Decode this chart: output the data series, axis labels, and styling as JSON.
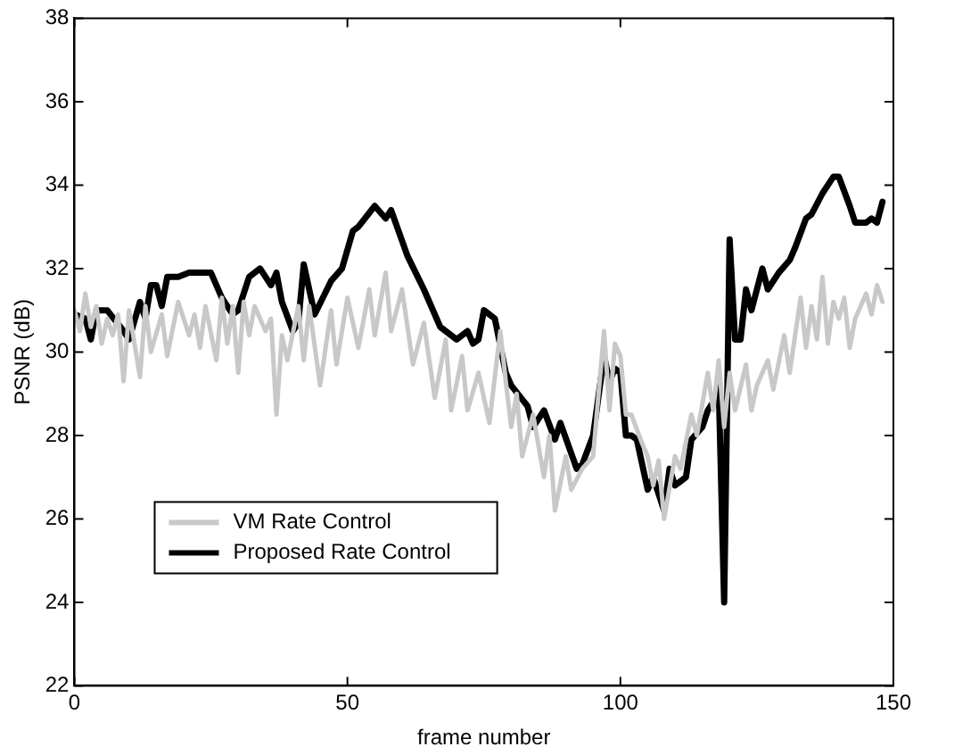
{
  "chart_data": {
    "type": "line",
    "xlabel": "frame number",
    "ylabel": "PSNR (dB)",
    "xlim": [
      0,
      150
    ],
    "xticks": [
      0,
      50,
      100,
      150
    ],
    "ylim": [
      22,
      38
    ],
    "yticks": [
      22,
      24,
      26,
      28,
      30,
      32,
      34,
      36,
      38
    ],
    "grid": false,
    "legend": "bottom left",
    "marker": "none",
    "line_style": "solid",
    "series": [
      {
        "name": "VM Rate Control",
        "color": "#c8c8c8",
        "x": [
          0,
          1,
          2,
          3,
          4,
          5,
          6,
          7,
          8,
          9,
          10,
          12,
          13,
          14,
          16,
          17,
          19,
          21,
          22,
          23,
          24,
          26,
          27,
          28,
          29,
          30,
          31,
          32,
          33,
          35,
          36,
          37,
          38,
          39,
          41,
          42,
          43,
          45,
          47,
          48,
          50,
          52,
          54,
          55,
          57,
          58,
          60,
          62,
          64,
          66,
          68,
          69,
          71,
          72,
          74,
          76,
          78,
          79,
          80,
          81,
          82,
          84,
          86,
          87,
          88,
          90,
          91,
          93,
          95,
          97,
          98,
          99,
          100,
          101,
          102,
          104,
          105,
          106,
          107,
          108,
          110,
          111,
          113,
          114,
          116,
          117,
          118,
          119,
          120,
          121,
          123,
          124,
          125,
          127,
          128,
          130,
          131,
          133,
          134,
          135,
          136,
          137,
          138,
          139,
          140,
          141,
          142,
          143,
          145,
          146,
          147,
          148
        ],
        "values": [
          31,
          30.5,
          31.4,
          30.6,
          31.1,
          30.2,
          30.8,
          30.4,
          30.9,
          29.3,
          31,
          29.4,
          31.1,
          30,
          30.9,
          29.9,
          31.2,
          30.4,
          30.9,
          30.1,
          31.1,
          29.8,
          31.3,
          30.2,
          31.1,
          29.5,
          31.2,
          30.4,
          31.1,
          30.5,
          30.8,
          28.5,
          30.4,
          29.8,
          31.1,
          29.8,
          31.1,
          29.2,
          31,
          29.7,
          31.3,
          30.1,
          31.5,
          30.4,
          31.9,
          30.5,
          31.5,
          29.7,
          30.7,
          28.9,
          30.3,
          28.6,
          29.9,
          28.6,
          29.5,
          28.3,
          30.5,
          29.3,
          28.2,
          29,
          27.5,
          28.5,
          27,
          28,
          26.2,
          27.5,
          26.7,
          27.2,
          27.5,
          30.5,
          28.6,
          30.2,
          29.9,
          28.5,
          28.5,
          27.8,
          27.5,
          26.8,
          27.4,
          26,
          27.5,
          27.2,
          28.5,
          28,
          29.5,
          28.6,
          29.8,
          28.2,
          29.5,
          28.6,
          29.7,
          28.6,
          29.2,
          29.8,
          29.1,
          30.4,
          29.5,
          31.3,
          30.1,
          31.1,
          30.3,
          31.8,
          30.2,
          31.2,
          30.8,
          31.3,
          30.1,
          30.8,
          31.4,
          30.9,
          31.6,
          31.2
        ]
      },
      {
        "name": "Proposed Rate Control",
        "color": "#000000",
        "x": [
          0,
          2,
          3,
          4,
          6,
          9,
          10,
          12,
          13,
          14,
          15,
          16,
          17,
          19,
          21,
          25,
          27,
          29,
          30,
          32,
          34,
          36,
          37,
          38,
          40,
          41,
          42,
          44,
          47,
          49,
          51,
          52,
          55,
          57,
          58,
          61,
          64,
          67,
          70,
          72,
          73,
          74,
          75,
          77,
          79,
          80,
          83,
          84,
          86,
          88,
          89,
          92,
          93,
          95,
          97,
          98,
          99,
          100,
          101,
          102,
          103,
          105,
          106,
          108,
          109,
          110,
          112,
          113,
          115,
          116,
          117,
          118,
          119,
          120,
          121,
          122,
          123,
          124,
          126,
          127,
          129,
          131,
          132,
          134,
          135,
          137,
          139,
          140,
          142,
          143,
          145,
          146,
          147,
          148
        ],
        "values": [
          30.9,
          30.8,
          30.3,
          31,
          31,
          30.5,
          30.3,
          31.2,
          30.8,
          31.6,
          31.6,
          31.1,
          31.8,
          31.8,
          31.9,
          31.9,
          31.3,
          30.9,
          31,
          31.8,
          32,
          31.6,
          31.9,
          31.2,
          30.5,
          30.7,
          32.1,
          30.9,
          31.7,
          32,
          32.9,
          33,
          33.5,
          33.2,
          33.4,
          32.3,
          31.5,
          30.6,
          30.3,
          30.5,
          30.2,
          30.3,
          31,
          30.8,
          29.5,
          29.2,
          28.7,
          28.2,
          28.6,
          27.9,
          28.3,
          27.2,
          27.3,
          28,
          29.9,
          29.3,
          29.6,
          29.5,
          28,
          28,
          27.9,
          26.7,
          27,
          26.2,
          27.2,
          26.8,
          27,
          27.9,
          28.2,
          28.6,
          28.8,
          29.2,
          24,
          32.7,
          30.3,
          30.3,
          31.5,
          31,
          32,
          31.5,
          31.9,
          32.2,
          32.5,
          33.2,
          33.3,
          33.8,
          34.2,
          34.2,
          33.5,
          33.1,
          33.1,
          33.2,
          33.1,
          33.6
        ]
      }
    ]
  }
}
